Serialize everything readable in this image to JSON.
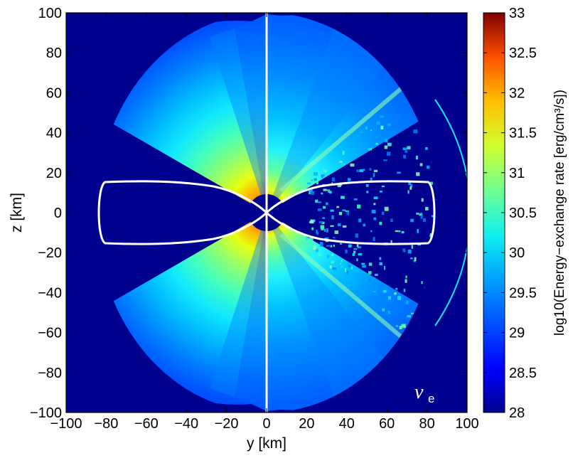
{
  "chart_data": {
    "type": "heatmap",
    "title": "",
    "xlabel": "y [km]",
    "ylabel": "z [km]",
    "xlim": [
      -100,
      100
    ],
    "ylim": [
      -100,
      100
    ],
    "x_ticks": [
      "−100",
      "−80",
      "−60",
      "−40",
      "−20",
      "0",
      "20",
      "40",
      "60",
      "80",
      "100"
    ],
    "y_ticks": [
      "100",
      "80",
      "60",
      "40",
      "20",
      "0",
      "−20",
      "−40",
      "−60",
      "−80",
      "−100"
    ],
    "x_tick_values": [
      -100,
      -80,
      -60,
      -40,
      -20,
      0,
      20,
      40,
      60,
      80,
      100
    ],
    "y_tick_values": [
      100,
      80,
      60,
      40,
      20,
      0,
      -20,
      -40,
      -60,
      -80,
      -100
    ],
    "colorbar": {
      "label": "log10(Energy−exchange rate [erg/cm³/s])",
      "range": [
        28,
        33
      ],
      "colormap": "jet",
      "ticks": [
        "33",
        "32.5",
        "32",
        "31.5",
        "31",
        "30.5",
        "30",
        "29.5",
        "29",
        "28.5",
        "28"
      ],
      "tick_values": [
        33,
        32.5,
        32,
        31.5,
        31,
        30.5,
        30,
        29.5,
        29,
        28.5,
        28
      ]
    },
    "annotation": "ν",
    "annotation_subscript": "e",
    "domain_radius_km": 100,
    "outer_extent_km": 85,
    "panels": [
      "left: smooth solution",
      "right: noisy Monte Carlo solution"
    ],
    "contour": {
      "color": "#ffffff",
      "description": "torus outline",
      "extent_y_km": [
        -83,
        83
      ],
      "extent_z_km": [
        -15,
        15
      ]
    },
    "colors": {
      "background": "#00008f",
      "divider": "#ffffff"
    }
  }
}
